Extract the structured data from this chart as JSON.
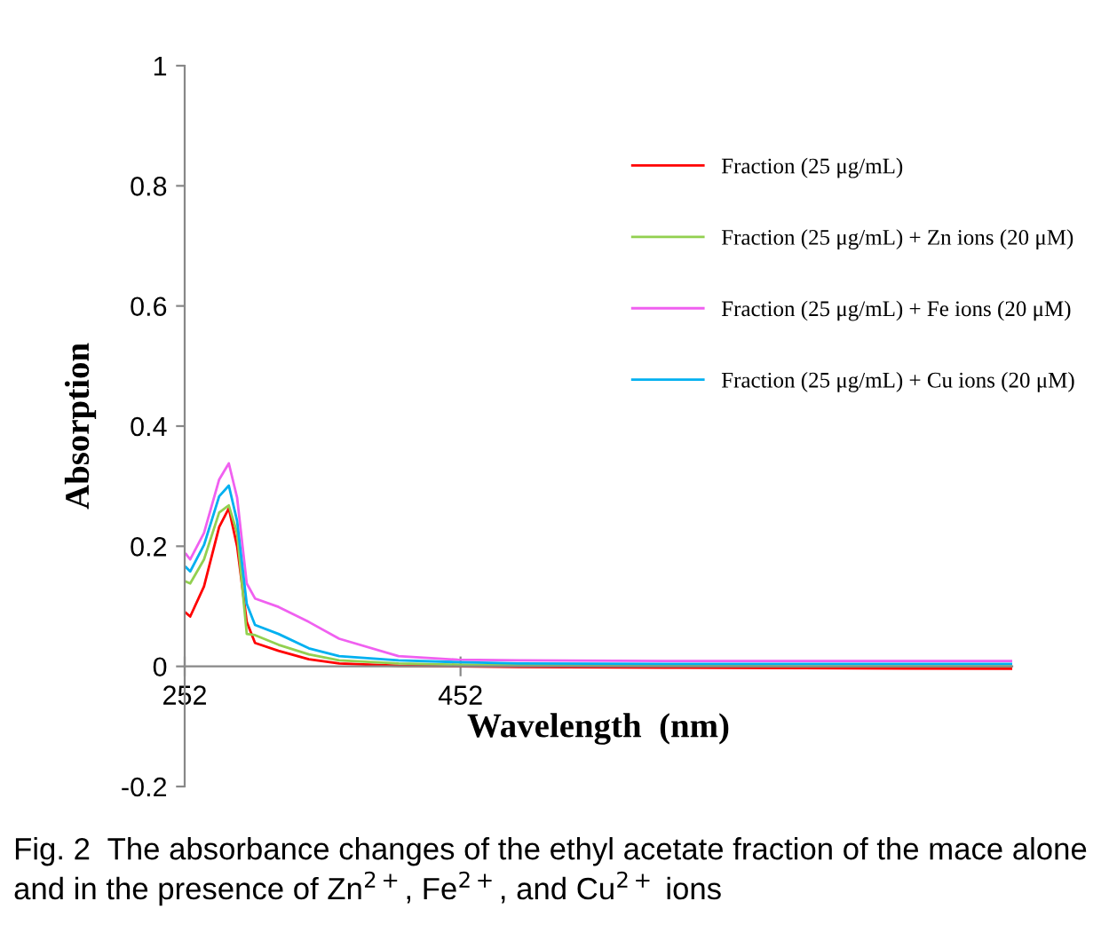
{
  "chart_data": {
    "type": "line",
    "xlabel": "Wavelength  (nm)",
    "ylabel": "Absorption",
    "x": [
      253,
      256,
      266,
      277,
      284,
      290,
      297,
      303,
      320,
      342,
      364,
      407,
      450,
      494,
      600,
      700,
      852
    ],
    "series": [
      {
        "name": "Fraction (25 μg/mL)",
        "color": "#ff0000",
        "values": [
          0.089,
          0.083,
          0.133,
          0.232,
          0.263,
          0.2,
          0.074,
          0.039,
          0.026,
          0.012,
          0.005,
          0.001,
          0.0,
          -0.001,
          -0.002,
          -0.003,
          -0.004
        ]
      },
      {
        "name": "Fraction (25 μg/mL) + Zn ions (20 μM)",
        "color": "#92d050",
        "values": [
          0.141,
          0.138,
          0.178,
          0.256,
          0.268,
          0.222,
          0.054,
          0.052,
          0.036,
          0.02,
          0.01,
          0.005,
          0.003,
          0.002,
          0.001,
          0.0,
          0.0
        ]
      },
      {
        "name": "Fraction (25 μg/mL) + Fe ions (20 μM)",
        "color": "#f060f0",
        "values": [
          0.187,
          0.178,
          0.222,
          0.311,
          0.338,
          0.281,
          0.138,
          0.113,
          0.099,
          0.074,
          0.046,
          0.017,
          0.011,
          0.01,
          0.009,
          0.009,
          0.009
        ]
      },
      {
        "name": "Fraction (25 μg/mL) + Cu ions (20 μM)",
        "color": "#00b0f0",
        "values": [
          0.165,
          0.158,
          0.202,
          0.283,
          0.301,
          0.242,
          0.104,
          0.069,
          0.054,
          0.03,
          0.017,
          0.01,
          0.007,
          0.005,
          0.004,
          0.004,
          0.004
        ]
      }
    ],
    "xlim": [
      252,
      852
    ],
    "ylim": [
      -0.2,
      1
    ],
    "xticks": [
      252,
      452
    ],
    "yticks": [
      -0.2,
      0,
      0.2,
      0.4,
      0.6,
      0.8,
      1
    ],
    "grid": false,
    "legend": "top right",
    "marker": "none",
    "line_style": "solid",
    "annotations": [
      "Fig. 2  The absorbance changes of the ethyl acetate fraction of the mace alone and in the presence of Zn$^{2+}$, Fe$^{2+}$, and Cu$^{2+}$ ions"
    ]
  }
}
